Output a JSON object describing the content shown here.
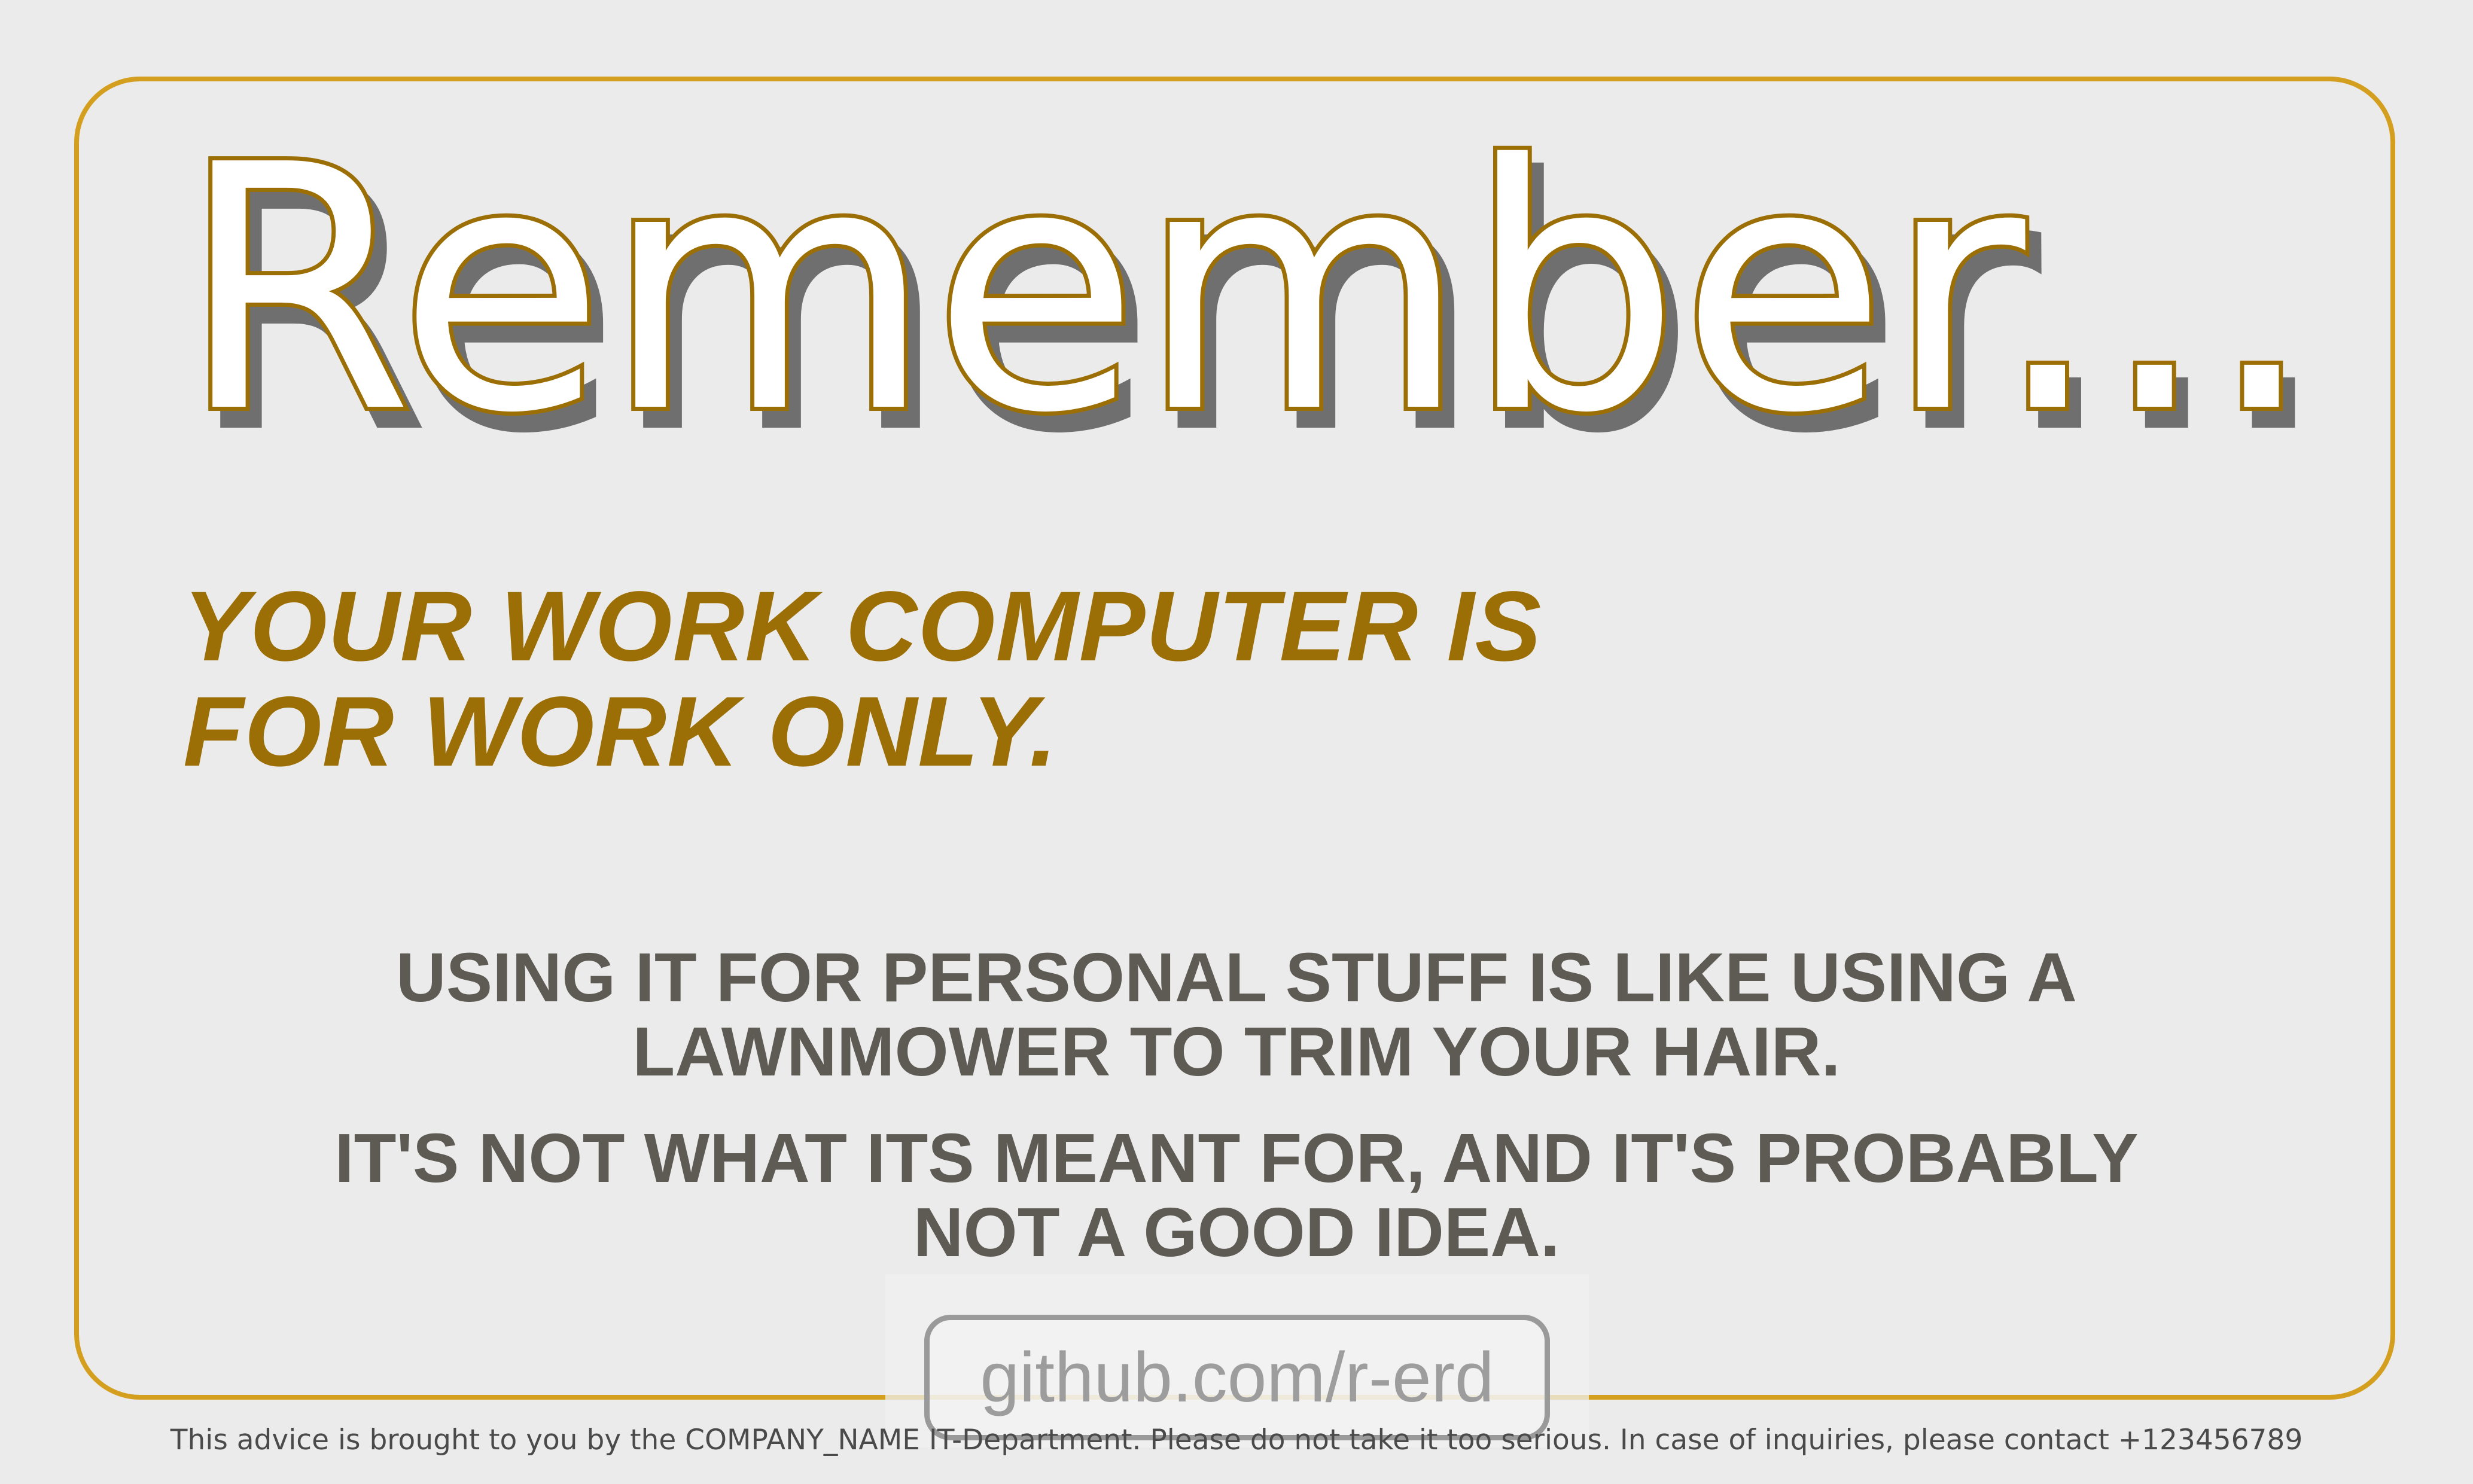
{
  "headline": "Remember...",
  "subheadline": {
    "line1": "YOUR WORK COMPUTER IS",
    "line2": "FOR WORK ONLY."
  },
  "body": {
    "paragraph1": {
      "line1": "USING IT FOR PERSONAL STUFF IS LIKE USING A",
      "line2": "LAWNMOWER TO TRIM YOUR HAIR."
    },
    "paragraph2": {
      "line1": "IT'S NOT WHAT ITS MEANT FOR, AND IT'S PROBABLY",
      "line2": "NOT A GOOD IDEA."
    }
  },
  "link_badge": "github.com/r-erd",
  "footer": "This advice is brought to you by the COMPANY_NAME IT-Department. Please do not take it too serious. In case of inquiries, please contact +123456789",
  "colors": {
    "background": "#ebebeb",
    "frame": "#d49f1e",
    "accent": "#9b6f05",
    "body_text": "#5e5b55",
    "headline_fill": "#ffffff",
    "headline_shadow": "#6f6f6f"
  }
}
